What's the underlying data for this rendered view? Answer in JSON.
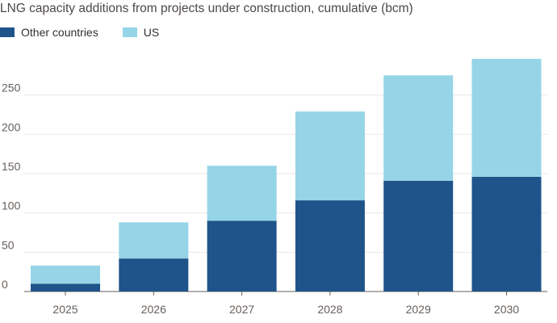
{
  "chart_data": {
    "type": "bar",
    "stacked": true,
    "title": "LNG capacity additions from projects under construction, cumulative (bcm)",
    "categories": [
      "2025",
      "2026",
      "2027",
      "2028",
      "2029",
      "2030"
    ],
    "series": [
      {
        "name": "Other countries",
        "color": "#1f548a",
        "values": [
          10,
          42,
          90,
          116,
          141,
          146
        ]
      },
      {
        "name": "US",
        "color": "#96d4e7",
        "values": [
          23,
          46,
          70,
          113,
          134,
          150
        ]
      }
    ],
    "ylim": [
      0,
      300
    ],
    "yticks": [
      0,
      50,
      100,
      150,
      200,
      250
    ],
    "grid": true,
    "legend_position": "top-left",
    "xlabel": "",
    "ylabel": ""
  }
}
